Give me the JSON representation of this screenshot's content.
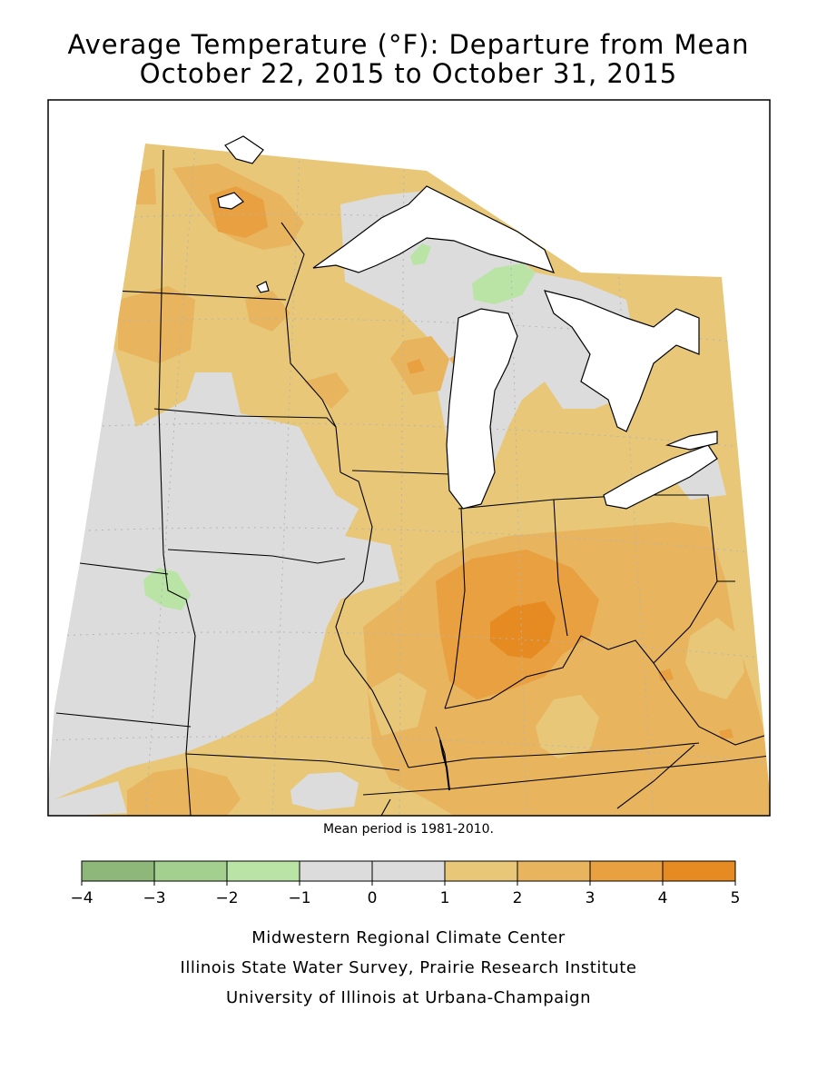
{
  "title": {
    "line1": "Average Temperature (°F): Departure from Mean",
    "line2": "October 22, 2015 to October 31, 2015"
  },
  "note": "Mean period is 1981-2010.",
  "legend": {
    "ticks": [
      "−4",
      "−3",
      "−2",
      "−1",
      "0",
      "1",
      "2",
      "3",
      "4",
      "5"
    ],
    "bins": [
      {
        "from": -4,
        "to": -3,
        "color": "#8db87a"
      },
      {
        "from": -3,
        "to": -2,
        "color": "#a3d08e"
      },
      {
        "from": -2,
        "to": -1,
        "color": "#b9e4a5"
      },
      {
        "from": -1,
        "to": 0,
        "color": "#dcdcdc"
      },
      {
        "from": 0,
        "to": 1,
        "color": "#dcdcdc"
      },
      {
        "from": 1,
        "to": 2,
        "color": "#e8c878"
      },
      {
        "from": 2,
        "to": 3,
        "color": "#e8b45e"
      },
      {
        "from": 3,
        "to": 4,
        "color": "#e8a040"
      },
      {
        "from": 4,
        "to": 5,
        "color": "#e68a22"
      }
    ]
  },
  "credits": [
    "Midwestern Regional Climate Center",
    "Illinois State Water Survey, Prairie Research Institute",
    "University of Illinois at Urbana-Champaign"
  ]
}
